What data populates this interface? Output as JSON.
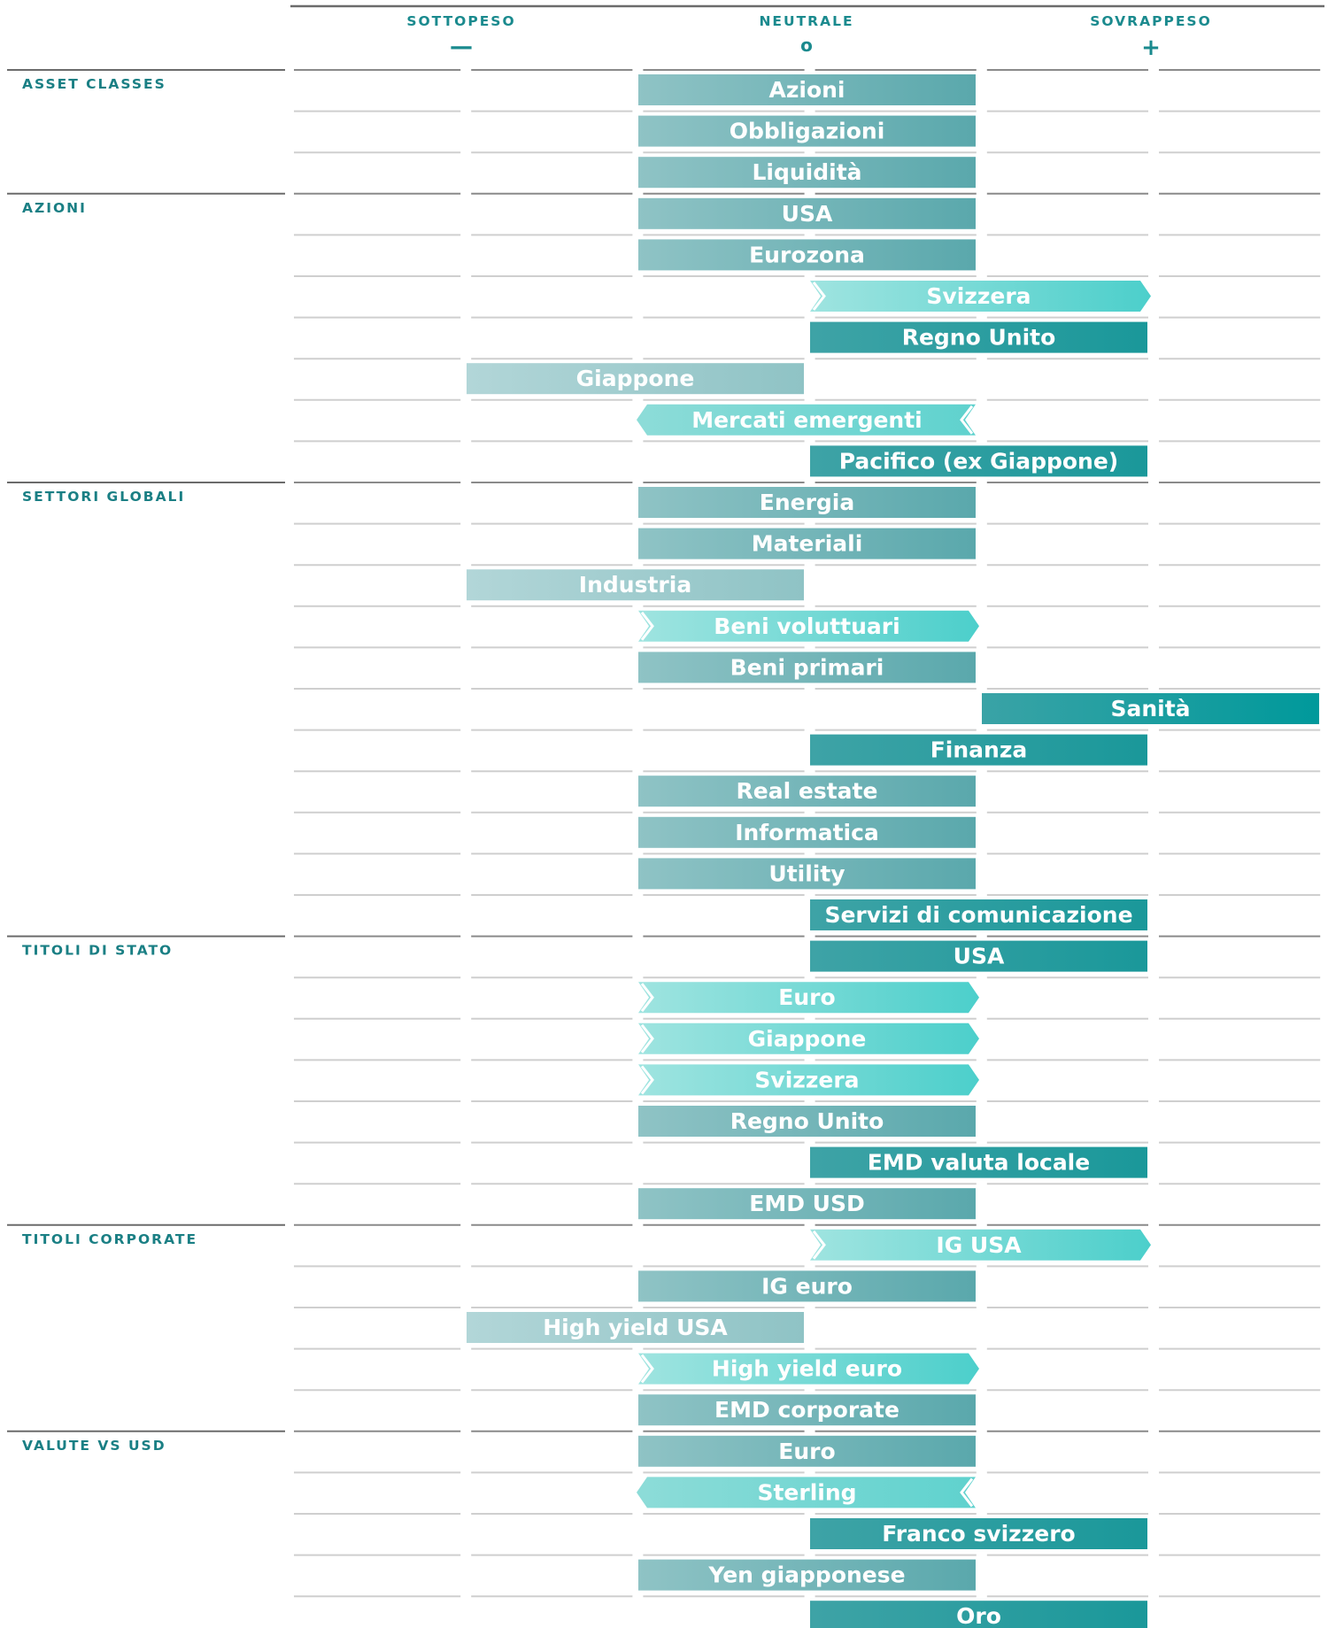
{
  "chart_data": {
    "type": "table",
    "header": {
      "columns": [
        {
          "label": "SOTTOPESO",
          "symbol": "—"
        },
        {
          "label": "NEUTRALE",
          "symbol": "o"
        },
        {
          "label": "SOVRAPPESO",
          "symbol": "+"
        }
      ]
    },
    "scale": {
      "min": -2,
      "max": 2
    },
    "colors": {
      "strong_negative": "#a3cdd0",
      "neutral": "#7ab8bb",
      "positive": "#1a989a",
      "strong_positive": "#00999b",
      "upgrade_arrow": "#4fd0cc",
      "downgrade_arrow": "#62d3d0",
      "grid": "#c8c8c8",
      "section_line": "#6b6b6b",
      "text": "#1a8a8e"
    },
    "sections": [
      {
        "name": "ASSET CLASSES",
        "rows": [
          {
            "label": "Azioni",
            "position": 0,
            "change": "none"
          },
          {
            "label": "Obbligazioni",
            "position": 0,
            "change": "none"
          },
          {
            "label": "Liquidità",
            "position": 0,
            "change": "none"
          }
        ]
      },
      {
        "name": "AZIONI",
        "rows": [
          {
            "label": "USA",
            "position": 0,
            "change": "none"
          },
          {
            "label": "Eurozona",
            "position": 0,
            "change": "none"
          },
          {
            "label": "Svizzera",
            "position": 1,
            "change": "up"
          },
          {
            "label": "Regno Unito",
            "position": 1,
            "change": "none"
          },
          {
            "label": "Giappone",
            "position": -1,
            "change": "none"
          },
          {
            "label": "Mercati emergenti",
            "position": 0,
            "change": "down"
          },
          {
            "label": "Pacifico (ex Giappone)",
            "position": 1,
            "change": "none"
          }
        ]
      },
      {
        "name": "SETTORI GLOBALI",
        "rows": [
          {
            "label": "Energia",
            "position": 0,
            "change": "none"
          },
          {
            "label": "Materiali",
            "position": 0,
            "change": "none"
          },
          {
            "label": "Industria",
            "position": -1,
            "change": "none"
          },
          {
            "label": "Beni voluttuari",
            "position": 0,
            "change": "up"
          },
          {
            "label": "Beni primari",
            "position": 0,
            "change": "none"
          },
          {
            "label": "Sanità",
            "position": 2,
            "change": "none"
          },
          {
            "label": "Finanza",
            "position": 1,
            "change": "none"
          },
          {
            "label": "Real estate",
            "position": 0,
            "change": "none"
          },
          {
            "label": "Informatica",
            "position": 0,
            "change": "none"
          },
          {
            "label": "Utility",
            "position": 0,
            "change": "none"
          },
          {
            "label": "Servizi di comunicazione",
            "position": 1,
            "change": "none"
          }
        ]
      },
      {
        "name": "TITOLI DI STATO",
        "rows": [
          {
            "label": "USA",
            "position": 1,
            "change": "none"
          },
          {
            "label": "Euro",
            "position": 0,
            "change": "up"
          },
          {
            "label": "Giappone",
            "position": 0,
            "change": "up"
          },
          {
            "label": "Svizzera",
            "position": 0,
            "change": "up"
          },
          {
            "label": "Regno Unito",
            "position": 0,
            "change": "none"
          },
          {
            "label": "EMD valuta locale",
            "position": 1,
            "change": "none"
          },
          {
            "label": "EMD USD",
            "position": 0,
            "change": "none"
          }
        ]
      },
      {
        "name": "TITOLI CORPORATE",
        "rows": [
          {
            "label": "IG USA",
            "position": 1,
            "change": "up"
          },
          {
            "label": "IG euro",
            "position": 0,
            "change": "none"
          },
          {
            "label": "High yield USA",
            "position": -1,
            "change": "none"
          },
          {
            "label": "High yield euro",
            "position": 0,
            "change": "up"
          },
          {
            "label": "EMD corporate",
            "position": 0,
            "change": "none"
          }
        ]
      },
      {
        "name": "VALUTE VS USD",
        "rows": [
          {
            "label": "Euro",
            "position": 0,
            "change": "none"
          },
          {
            "label": "Sterling",
            "position": 0,
            "change": "down"
          },
          {
            "label": "Franco svizzero",
            "position": 1,
            "change": "none"
          },
          {
            "label": "Yen giapponese",
            "position": 0,
            "change": "none"
          },
          {
            "label": "Oro",
            "position": 1,
            "change": "none"
          }
        ]
      }
    ]
  }
}
